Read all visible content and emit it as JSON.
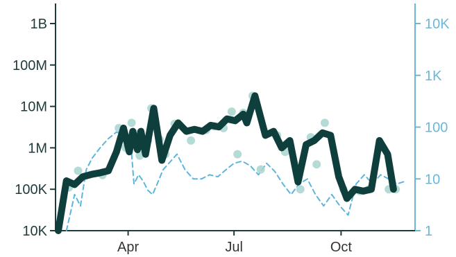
{
  "chart_data": {
    "type": "line",
    "title": "",
    "xlabel": "",
    "ylabel": "",
    "x_ticks": [
      "Apr",
      "Jul",
      "Oct"
    ],
    "x_tick_dates": [
      "2020-04-01",
      "2020-07-01",
      "2020-10-01"
    ],
    "x_range": [
      "2020-02-01",
      "2020-11-30"
    ],
    "y_left": {
      "scale": "log",
      "ylim": [
        10000,
        1000000000
      ],
      "ticks": [
        "10K",
        "100K",
        "1M",
        "10M",
        "100M",
        "1B"
      ],
      "tick_values": [
        10000,
        100000,
        1000000,
        10000000,
        100000000,
        1000000000
      ]
    },
    "y_right": {
      "scale": "log",
      "ylim": [
        1,
        10000
      ],
      "ticks": [
        "1",
        "10",
        "100",
        "1K",
        "10K"
      ],
      "tick_values": [
        1,
        10,
        100,
        1000,
        10000
      ]
    },
    "series": [
      {
        "axis": "left",
        "style": "thick-line",
        "color": "#0f3f3d",
        "points": [
          [
            "2020-02-01",
            10000
          ],
          [
            "2020-02-08",
            160000
          ],
          [
            "2020-02-15",
            130000
          ],
          [
            "2020-02-22",
            200000
          ],
          [
            "2020-03-01",
            230000
          ],
          [
            "2020-03-08",
            250000
          ],
          [
            "2020-03-15",
            280000
          ],
          [
            "2020-03-22",
            800000
          ],
          [
            "2020-03-28",
            3000000
          ],
          [
            "2020-04-02",
            800000
          ],
          [
            "2020-04-05",
            2500000
          ],
          [
            "2020-04-09",
            900000
          ],
          [
            "2020-04-12",
            2500000
          ],
          [
            "2020-04-16",
            700000
          ],
          [
            "2020-04-23",
            9000000
          ],
          [
            "2020-04-30",
            500000
          ],
          [
            "2020-05-07",
            2000000
          ],
          [
            "2020-05-14",
            4000000
          ],
          [
            "2020-05-21",
            2500000
          ],
          [
            "2020-05-28",
            2800000
          ],
          [
            "2020-06-04",
            2500000
          ],
          [
            "2020-06-11",
            3500000
          ],
          [
            "2020-06-18",
            3200000
          ],
          [
            "2020-06-25",
            5000000
          ],
          [
            "2020-07-02",
            4500000
          ],
          [
            "2020-07-09",
            6500000
          ],
          [
            "2020-07-12",
            4000000
          ],
          [
            "2020-07-19",
            18000000
          ],
          [
            "2020-07-28",
            2000000
          ],
          [
            "2020-08-04",
            2500000
          ],
          [
            "2020-08-11",
            1000000
          ],
          [
            "2020-08-18",
            1500000
          ],
          [
            "2020-08-25",
            150000
          ],
          [
            "2020-09-01",
            1200000
          ],
          [
            "2020-09-08",
            1500000
          ],
          [
            "2020-09-15",
            2300000
          ],
          [
            "2020-09-22",
            2000000
          ],
          [
            "2020-09-29",
            200000
          ],
          [
            "2020-10-06",
            60000
          ],
          [
            "2020-10-13",
            100000
          ],
          [
            "2020-10-20",
            90000
          ],
          [
            "2020-10-27",
            100000
          ],
          [
            "2020-11-03",
            1500000
          ],
          [
            "2020-11-10",
            700000
          ],
          [
            "2020-11-15",
            100000
          ]
        ]
      },
      {
        "axis": "left",
        "style": "points",
        "color": "#a8d5d0",
        "points": [
          [
            "2020-02-10",
            110000
          ],
          [
            "2020-02-18",
            280000
          ],
          [
            "2020-03-10",
            220000
          ],
          [
            "2020-03-24",
            3000000
          ],
          [
            "2020-03-30",
            1000000
          ],
          [
            "2020-04-04",
            4000000
          ],
          [
            "2020-04-07",
            2200000
          ],
          [
            "2020-04-11",
            650000
          ],
          [
            "2020-04-18",
            1500000
          ],
          [
            "2020-04-21",
            9000000
          ],
          [
            "2020-04-28",
            1600000
          ],
          [
            "2020-05-03",
            700000
          ],
          [
            "2020-05-11",
            3800000
          ],
          [
            "2020-05-25",
            1500000
          ],
          [
            "2020-06-07",
            2700000
          ],
          [
            "2020-06-14",
            3300000
          ],
          [
            "2020-06-22",
            3000000
          ],
          [
            "2020-06-29",
            7500000
          ],
          [
            "2020-07-04",
            700000
          ],
          [
            "2020-07-09",
            7000000
          ],
          [
            "2020-07-17",
            18000000
          ],
          [
            "2020-07-24",
            300000
          ],
          [
            "2020-08-07",
            2000000
          ],
          [
            "2020-08-14",
            800000
          ],
          [
            "2020-08-27",
            100000
          ],
          [
            "2020-09-05",
            1800000
          ],
          [
            "2020-09-10",
            400000
          ],
          [
            "2020-09-17",
            4000000
          ],
          [
            "2020-10-03",
            100000
          ],
          [
            "2020-10-17",
            90000
          ],
          [
            "2020-10-25",
            100000
          ],
          [
            "2020-11-06",
            1000000
          ],
          [
            "2020-11-11",
            100000
          ],
          [
            "2020-11-17",
            100000
          ]
        ]
      },
      {
        "axis": "right",
        "style": "dashed",
        "color": "#5bb5dc",
        "points": [
          [
            "2020-02-08",
            1
          ],
          [
            "2020-02-15",
            5
          ],
          [
            "2020-02-20",
            3
          ],
          [
            "2020-02-25",
            15
          ],
          [
            "2020-03-01",
            25
          ],
          [
            "2020-03-08",
            40
          ],
          [
            "2020-03-15",
            60
          ],
          [
            "2020-03-22",
            80
          ],
          [
            "2020-03-29",
            70
          ],
          [
            "2020-04-03",
            60
          ],
          [
            "2020-04-06",
            8
          ],
          [
            "2020-04-10",
            12
          ],
          [
            "2020-04-14",
            9
          ],
          [
            "2020-04-18",
            6
          ],
          [
            "2020-04-22",
            5
          ],
          [
            "2020-04-26",
            8
          ],
          [
            "2020-05-01",
            15
          ],
          [
            "2020-05-06",
            20
          ],
          [
            "2020-05-13",
            30
          ],
          [
            "2020-05-20",
            15
          ],
          [
            "2020-05-27",
            10
          ],
          [
            "2020-06-03",
            10
          ],
          [
            "2020-06-10",
            12
          ],
          [
            "2020-06-17",
            11
          ],
          [
            "2020-06-24",
            15
          ],
          [
            "2020-07-01",
            20
          ],
          [
            "2020-07-08",
            22
          ],
          [
            "2020-07-15",
            18
          ],
          [
            "2020-07-22",
            12
          ],
          [
            "2020-07-29",
            20
          ],
          [
            "2020-08-05",
            14
          ],
          [
            "2020-08-12",
            8
          ],
          [
            "2020-08-19",
            5
          ],
          [
            "2020-08-26",
            8
          ],
          [
            "2020-09-02",
            10
          ],
          [
            "2020-09-09",
            5
          ],
          [
            "2020-09-16",
            3
          ],
          [
            "2020-09-23",
            5
          ],
          [
            "2020-09-30",
            3
          ],
          [
            "2020-10-07",
            2
          ],
          [
            "2020-10-14",
            8
          ],
          [
            "2020-10-21",
            12
          ],
          [
            "2020-10-28",
            8
          ],
          [
            "2020-11-04",
            12
          ],
          [
            "2020-11-11",
            10
          ],
          [
            "2020-11-18",
            8
          ],
          [
            "2020-11-25",
            9
          ]
        ]
      }
    ],
    "grid": false,
    "legend": "none"
  }
}
